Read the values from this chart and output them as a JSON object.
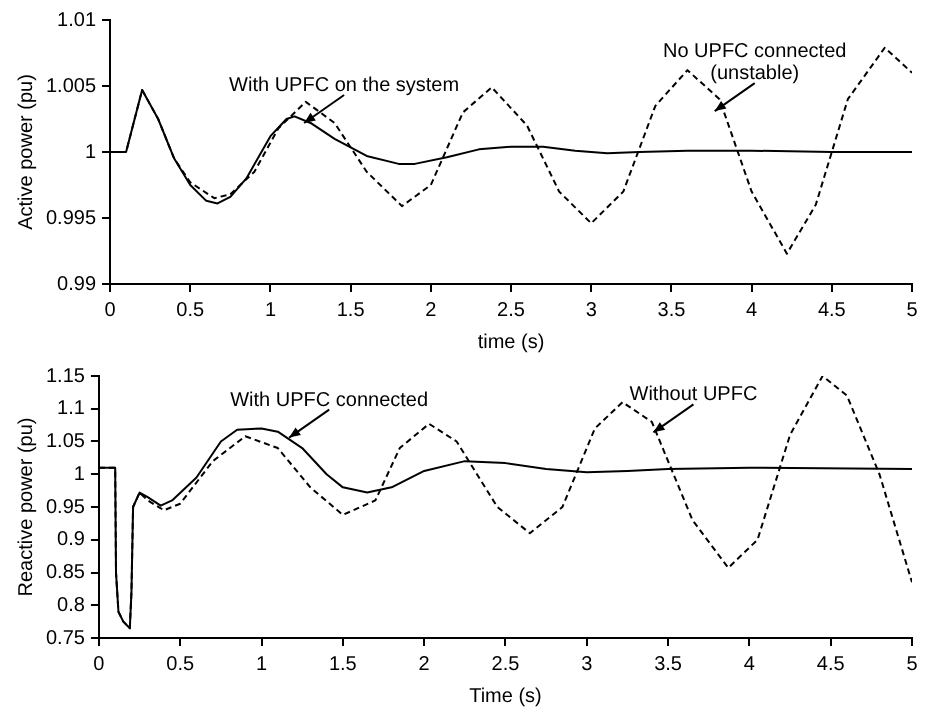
{
  "chart_data": [
    {
      "type": "line",
      "xlabel": "time (s)",
      "ylabel": "Active power (pu)",
      "xlim": [
        0,
        5
      ],
      "xticks": [
        0,
        0.5,
        1,
        1.5,
        2,
        2.5,
        3,
        3.5,
        4,
        4.5,
        5
      ],
      "ylim": [
        0.99,
        1.01
      ],
      "yticks": [
        0.99,
        0.995,
        1,
        1.005,
        1.01
      ],
      "grid": false,
      "legend": false,
      "marker": "none",
      "series": [
        {
          "color": "#000000",
          "line_style": "solid",
          "x": [
            0,
            0.1,
            0.2,
            0.3,
            0.4,
            0.5,
            0.6,
            0.67,
            0.75,
            0.85,
            1.0,
            1.1,
            1.15,
            1.25,
            1.4,
            1.6,
            1.8,
            1.9,
            2.1,
            2.3,
            2.5,
            2.7,
            2.9,
            3.1,
            3.3,
            3.6,
            4,
            4.5,
            5
          ],
          "values": [
            1,
            1,
            1.0047,
            1.0025,
            0.9995,
            0.9975,
            0.9963,
            0.9961,
            0.9966,
            0.998,
            1.0012,
            1.0025,
            1.0027,
            1.0022,
            1.001,
            0.9997,
            0.9991,
            0.9991,
            0.9996,
            1.0002,
            1.0004,
            1.0004,
            1.0001,
            0.9999,
            1.0,
            1.0001,
            1.0001,
            1.0,
            1.0
          ]
        },
        {
          "color": "#000000",
          "line_style": "dashed",
          "x": [
            0,
            0.1,
            0.2,
            0.3,
            0.4,
            0.5,
            0.65,
            0.75,
            0.9,
            1.05,
            1.22,
            1.4,
            1.6,
            1.82,
            2.0,
            2.2,
            2.38,
            2.6,
            2.8,
            3.0,
            3.2,
            3.4,
            3.6,
            3.8,
            4.0,
            4.22,
            4.4,
            4.6,
            4.83,
            5.0
          ],
          "values": [
            1,
            1,
            1.0047,
            1.0025,
            0.9995,
            0.9977,
            0.9965,
            0.9968,
            0.9985,
            1.0018,
            1.0038,
            1.0022,
            0.9985,
            0.9959,
            0.9975,
            1.003,
            1.0049,
            1.002,
            0.997,
            0.9946,
            0.997,
            1.0035,
            1.0062,
            1.004,
            0.997,
            0.9923,
            0.996,
            1.004,
            1.0079,
            1.006
          ]
        }
      ],
      "annotations": [
        {
          "text": "With UPFC on the system",
          "x": 1.21,
          "y": 1.0022
        },
        {
          "text": "No UPFC connected\n(unstable)",
          "x": 3.77,
          "y": 1.0031
        }
      ]
    },
    {
      "type": "line",
      "xlabel": "Time (s)",
      "ylabel": "Reactive power (pu)",
      "xlim": [
        0,
        5
      ],
      "xticks": [
        0,
        0.5,
        1,
        1.5,
        2,
        2.5,
        3,
        3.5,
        4,
        4.5,
        5
      ],
      "ylim": [
        0.75,
        1.15
      ],
      "yticks": [
        0.75,
        0.8,
        0.85,
        0.9,
        0.95,
        1,
        1.05,
        1.1,
        1.15
      ],
      "grid": false,
      "legend": false,
      "marker": "none",
      "series": [
        {
          "color": "#000000",
          "line_style": "solid",
          "x": [
            0,
            0.1,
            0.105,
            0.12,
            0.15,
            0.19,
            0.2,
            0.21,
            0.25,
            0.3,
            0.38,
            0.45,
            0.6,
            0.75,
            0.85,
            1.0,
            1.1,
            1.25,
            1.4,
            1.5,
            1.65,
            1.8,
            2.0,
            2.25,
            2.5,
            2.75,
            3.0,
            3.25,
            3.5,
            4,
            5
          ],
          "values": [
            1.01,
            1.01,
            0.85,
            0.79,
            0.775,
            0.765,
            0.82,
            0.95,
            0.972,
            0.965,
            0.952,
            0.96,
            0.995,
            1.05,
            1.068,
            1.07,
            1.065,
            1.04,
            1.0,
            0.98,
            0.972,
            0.98,
            1.005,
            1.02,
            1.017,
            1.008,
            1.003,
            1.005,
            1.008,
            1.01,
            1.008
          ]
        },
        {
          "color": "#000000",
          "line_style": "dashed",
          "x": [
            0,
            0.1,
            0.105,
            0.12,
            0.15,
            0.19,
            0.2,
            0.21,
            0.25,
            0.3,
            0.4,
            0.5,
            0.7,
            0.9,
            1.1,
            1.3,
            1.5,
            1.7,
            1.85,
            2.03,
            2.2,
            2.45,
            2.65,
            2.85,
            3.05,
            3.22,
            3.4,
            3.65,
            3.87,
            4.05,
            4.25,
            4.45,
            4.6,
            4.8,
            5.0
          ],
          "values": [
            1.01,
            1.01,
            0.85,
            0.79,
            0.775,
            0.765,
            0.82,
            0.95,
            0.972,
            0.96,
            0.945,
            0.955,
            1.02,
            1.058,
            1.04,
            0.98,
            0.938,
            0.96,
            1.04,
            1.077,
            1.05,
            0.95,
            0.91,
            0.95,
            1.07,
            1.11,
            1.08,
            0.93,
            0.857,
            0.9,
            1.06,
            1.15,
            1.12,
            1.0,
            0.835
          ]
        }
      ],
      "annotations": [
        {
          "text": "With UPFC connected",
          "x": 1.17,
          "y": 1.056
        },
        {
          "text": "Without UPFC",
          "x": 3.41,
          "y": 1.064
        }
      ]
    }
  ]
}
